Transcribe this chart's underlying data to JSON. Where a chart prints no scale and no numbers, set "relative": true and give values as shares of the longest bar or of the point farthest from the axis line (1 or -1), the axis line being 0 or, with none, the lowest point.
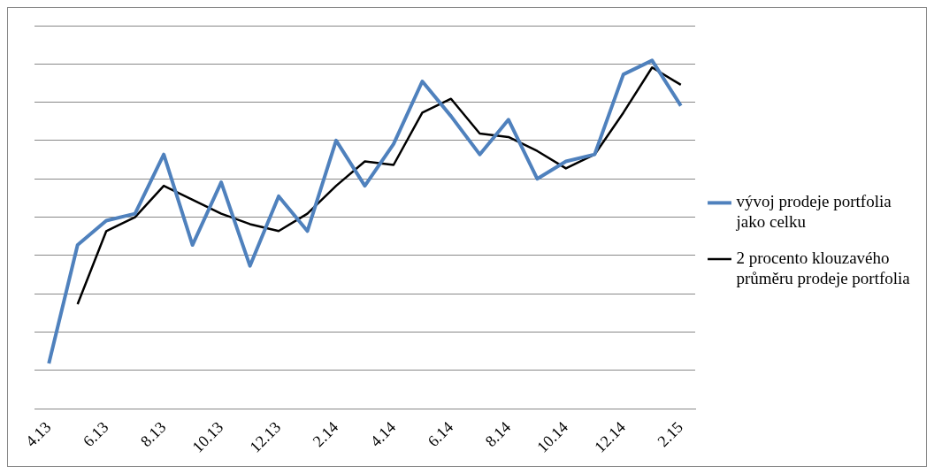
{
  "chart_data": {
    "type": "line",
    "relative": true,
    "grid": "y",
    "legend": "right",
    "marker": "none",
    "categories": [
      "4.13",
      null,
      "6.13",
      null,
      "8.13",
      null,
      "10.13",
      null,
      "12.13",
      null,
      "2.14",
      null,
      "4.14",
      null,
      "6.14",
      null,
      "8.14",
      null,
      "10.14",
      null,
      "12.14",
      null,
      "2.15"
    ],
    "series": [
      {
        "name": "vývoj prodeje portfolia jako celku",
        "color": "#4f81bd",
        "values": [
          0.13,
          0.47,
          0.54,
          0.56,
          0.73,
          0.47,
          0.65,
          0.41,
          0.61,
          0.51,
          0.77,
          0.64,
          0.76,
          0.94,
          0.84,
          0.73,
          0.83,
          0.66,
          0.71,
          0.73,
          0.96,
          1,
          0.87
        ]
      },
      {
        "name": "2 procento klouzavého průměru prodeje portfolia",
        "color": "#000000",
        "values": [
          null,
          0.3,
          0.51,
          0.55,
          0.64,
          0.6,
          0.56,
          0.53,
          0.51,
          0.56,
          0.64,
          0.71,
          0.7,
          0.85,
          0.89,
          0.79,
          0.78,
          0.74,
          0.69,
          0.73,
          0.85,
          0.98,
          0.93
        ]
      }
    ]
  }
}
